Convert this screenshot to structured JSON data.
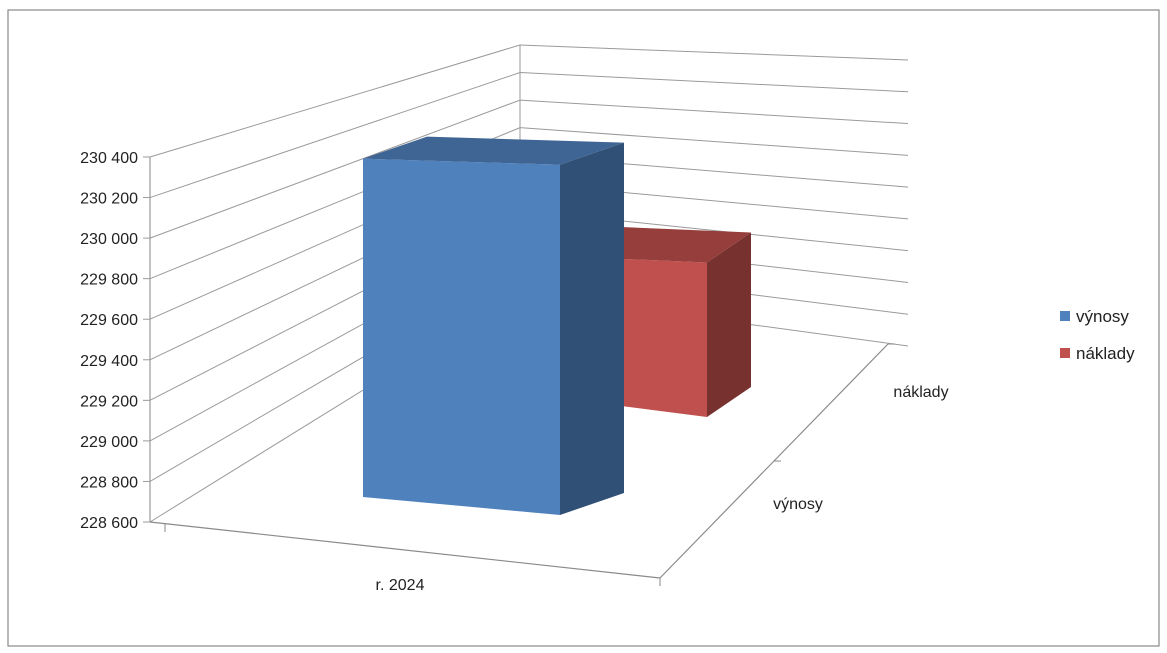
{
  "chart_data": {
    "type": "bar",
    "variant": "3d-clustered-column",
    "title": "",
    "xlabel": "",
    "ylabel": "",
    "categories": [
      "r. 2024"
    ],
    "depth_categories": [
      "výnosy",
      "náklady"
    ],
    "series": [
      {
        "name": "výnosy",
        "values": [
          230350
        ],
        "color": "#4f81bd"
      },
      {
        "name": "náklady",
        "values": [
          229550
        ],
        "color": "#c0504d"
      }
    ],
    "ylim": [
      228600,
      230400
    ],
    "y_ticks": [
      "228 600",
      "228 800",
      "229 000",
      "229 200",
      "229 400",
      "229 600",
      "229 800",
      "230 000",
      "230 200",
      "230 400"
    ],
    "grid": true,
    "legend": {
      "position": "right",
      "entries": [
        {
          "label": "výnosy",
          "color": "#4f81bd"
        },
        {
          "label": "náklady",
          "color": "#c0504d"
        }
      ]
    }
  }
}
